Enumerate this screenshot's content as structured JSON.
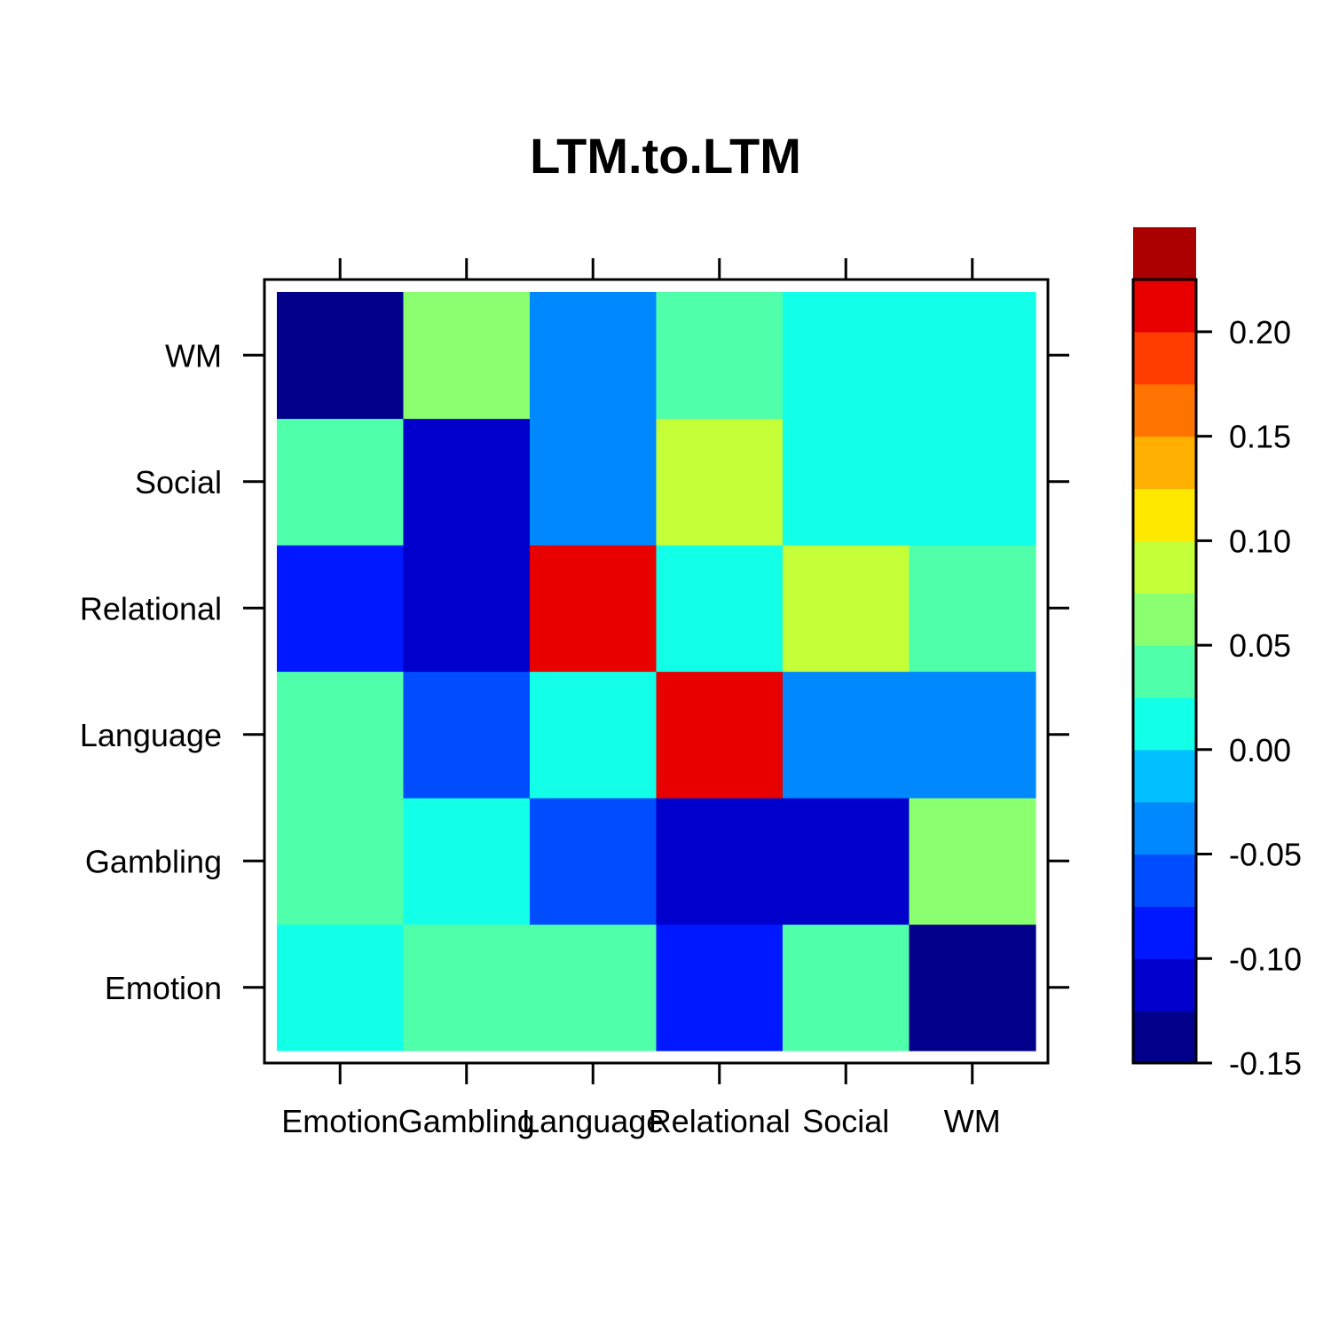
{
  "chart_data": {
    "type": "heatmap",
    "title": "LTM.to.LTM",
    "xlabel": "",
    "ylabel": "",
    "x_categories": [
      "Emotion",
      "Gambling",
      "Language",
      "Relational",
      "Social",
      "WM"
    ],
    "y_categories": [
      "Emotion",
      "Gambling",
      "Language",
      "Relational",
      "Social",
      "WM"
    ],
    "values": [
      [
        0.005,
        0.03,
        0.03,
        -0.08,
        0.03,
        -0.14
      ],
      [
        0.03,
        0.005,
        -0.055,
        -0.105,
        -0.105,
        0.055
      ],
      [
        0.03,
        -0.055,
        0.005,
        0.21,
        -0.03,
        -0.03
      ],
      [
        -0.08,
        -0.105,
        0.21,
        0.005,
        0.08,
        0.03
      ],
      [
        0.03,
        -0.105,
        -0.03,
        0.08,
        0.005,
        0.005
      ],
      [
        -0.14,
        0.055,
        -0.03,
        0.03,
        0.005,
        0.005
      ]
    ],
    "colorbar": {
      "range": [
        -0.15,
        0.225
      ],
      "ticks": [
        -0.15,
        -0.1,
        -0.05,
        0.0,
        0.05,
        0.1,
        0.15,
        0.2
      ],
      "tick_labels": [
        "-0.15",
        "-0.10",
        "-0.05",
        "0.00",
        "0.05",
        "0.10",
        "0.15",
        "0.20"
      ],
      "bin_width": 0.025,
      "colors": [
        "#00008B",
        "#0000CC",
        "#0018FF",
        "#004CFF",
        "#0088FF",
        "#00C0FF",
        "#12FFE8",
        "#50FFAA",
        "#8AFF70",
        "#C4FF38",
        "#FFE800",
        "#FFB000",
        "#FF7400",
        "#FF3C00",
        "#E80000",
        "#AA0000"
      ]
    }
  }
}
